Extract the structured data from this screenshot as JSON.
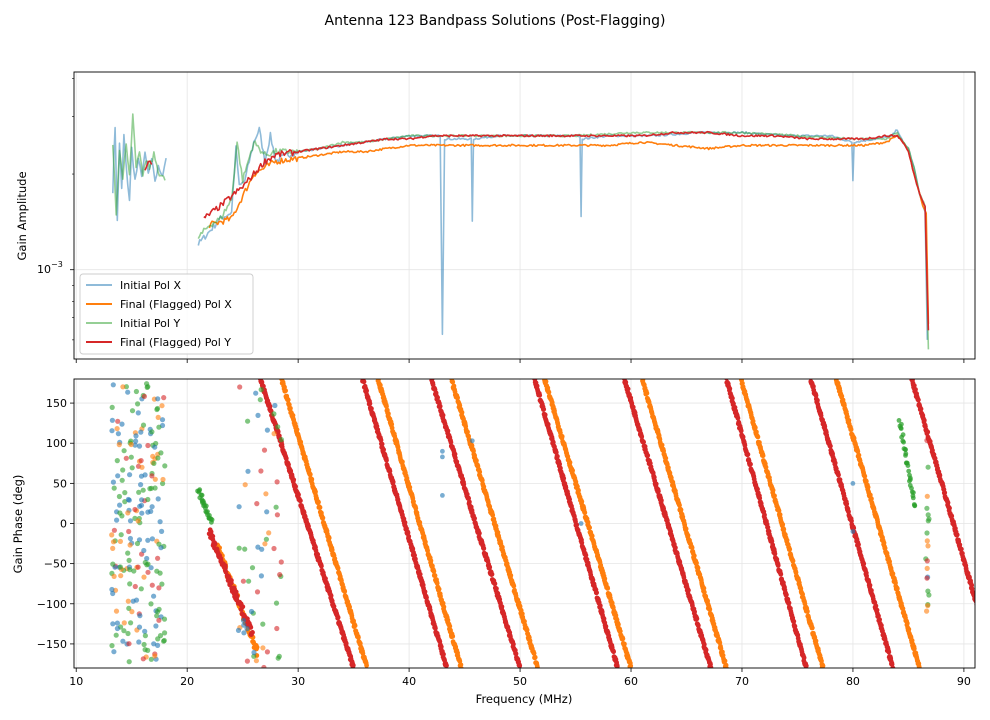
{
  "figure": {
    "title": "Antenna 123 Bandpass Solutions (Post-Flagging)"
  },
  "colors": {
    "pol_x_initial": "#1f77b4",
    "pol_x_final": "#ff7f0e",
    "pol_y_initial": "#2ca02c",
    "pol_y_final": "#d62728"
  },
  "chart_data": [
    {
      "type": "line",
      "panel": "amplitude",
      "ylabel": "Gain Amplitude",
      "yscale": "log",
      "ytick_base": "10",
      "ytick_exp": "−3",
      "xlim": [
        9.8,
        91
      ],
      "ylim_log10": [
        -3.28,
        -2.38
      ],
      "grid": true,
      "legend_position": "lower-left",
      "legend": [
        "Initial Pol X",
        "Final (Flagged) Pol X",
        "Initial Pol Y",
        "Final (Flagged) Pol Y"
      ],
      "series": [
        {
          "name": "Initial Pol X",
          "color": "#1f77b4",
          "alpha": 0.5,
          "segments": [
            [
              [
                13.3,
                -2.75
              ],
              [
                13.5,
                -2.55
              ],
              [
                13.7,
                -2.85
              ],
              [
                13.9,
                -2.6
              ],
              [
                14.1,
                -2.75
              ],
              [
                14.3,
                -2.58
              ],
              [
                14.5,
                -2.68
              ],
              [
                14.8,
                -2.78
              ],
              [
                15.0,
                -2.62
              ],
              [
                15.3,
                -2.72
              ],
              [
                15.6,
                -2.66
              ],
              [
                15.9,
                -2.7
              ],
              [
                16.2,
                -2.64
              ],
              [
                16.5,
                -2.7
              ],
              [
                16.8,
                -2.66
              ],
              [
                17.1,
                -2.72
              ],
              [
                17.4,
                -2.68
              ],
              [
                17.8,
                -2.7
              ],
              [
                18.1,
                -2.65
              ]
            ],
            [
              [
                21.0,
                -2.92
              ],
              [
                22.0,
                -2.88
              ],
              [
                23.0,
                -2.84
              ],
              [
                24.0,
                -2.82
              ],
              [
                24.4,
                -2.62
              ],
              [
                24.7,
                -2.74
              ],
              [
                25.2,
                -2.72
              ],
              [
                26.0,
                -2.6
              ],
              [
                26.5,
                -2.56
              ],
              [
                27.0,
                -2.66
              ],
              [
                27.5,
                -2.58
              ],
              [
                28.0,
                -2.66
              ],
              [
                29.0,
                -2.64
              ],
              [
                30.0,
                -2.63
              ],
              [
                32.0,
                -2.62
              ],
              [
                34.0,
                -2.61
              ],
              [
                36.0,
                -2.6
              ],
              [
                38.0,
                -2.59
              ],
              [
                40.0,
                -2.58
              ],
              [
                42.0,
                -2.58
              ],
              [
                42.8,
                -2.58
              ],
              [
                43.0,
                -3.2
              ],
              [
                43.2,
                -2.59
              ],
              [
                45.0,
                -2.59
              ],
              [
                45.6,
                -2.59
              ],
              [
                45.7,
                -2.85
              ],
              [
                45.8,
                -2.59
              ],
              [
                48.0,
                -2.58
              ],
              [
                50.0,
                -2.58
              ],
              [
                52.0,
                -2.58
              ],
              [
                55.0,
                -2.58
              ],
              [
                55.4,
                -2.58
              ],
              [
                55.5,
                -2.83
              ],
              [
                55.6,
                -2.59
              ],
              [
                58.0,
                -2.58
              ],
              [
                62.0,
                -2.58
              ],
              [
                66.0,
                -2.57
              ],
              [
                70.0,
                -2.57
              ],
              [
                74.0,
                -2.58
              ],
              [
                78.0,
                -2.58
              ],
              [
                79.9,
                -2.6
              ],
              [
                80.0,
                -2.72
              ],
              [
                80.1,
                -2.6
              ],
              [
                82.0,
                -2.59
              ],
              [
                83.5,
                -2.58
              ],
              [
                84.0,
                -2.56
              ],
              [
                84.5,
                -2.6
              ],
              [
                85.0,
                -2.62
              ],
              [
                85.5,
                -2.68
              ],
              [
                86.0,
                -2.76
              ],
              [
                86.3,
                -2.8
              ],
              [
                86.5,
                -2.82
              ],
              [
                86.7,
                -3.22
              ]
            ]
          ]
        },
        {
          "name": "Final (Flagged) Pol X",
          "color": "#ff7f0e",
          "alpha": 1,
          "segments": [
            [
              [
                22.0,
                -2.86
              ],
              [
                24.0,
                -2.84
              ],
              [
                26.0,
                -2.7
              ],
              [
                28.0,
                -2.66
              ],
              [
                30.0,
                -2.65
              ],
              [
                32.0,
                -2.64
              ],
              [
                34.0,
                -2.63
              ],
              [
                36.0,
                -2.63
              ],
              [
                38.0,
                -2.62
              ],
              [
                40.0,
                -2.61
              ],
              [
                42.0,
                -2.61
              ],
              [
                44.0,
                -2.61
              ],
              [
                46.0,
                -2.61
              ],
              [
                48.0,
                -2.61
              ],
              [
                50.0,
                -2.61
              ],
              [
                52.0,
                -2.61
              ],
              [
                55.0,
                -2.61
              ],
              [
                58.0,
                -2.61
              ],
              [
                61.0,
                -2.6
              ],
              [
                64.0,
                -2.61
              ],
              [
                67.0,
                -2.62
              ],
              [
                70.0,
                -2.61
              ],
              [
                73.0,
                -2.61
              ],
              [
                76.0,
                -2.61
              ],
              [
                79.0,
                -2.61
              ],
              [
                81.0,
                -2.61
              ],
              [
                83.0,
                -2.6
              ],
              [
                84.0,
                -2.58
              ],
              [
                84.5,
                -2.6
              ],
              [
                85.0,
                -2.63
              ],
              [
                85.5,
                -2.7
              ],
              [
                86.0,
                -2.76
              ],
              [
                86.3,
                -2.8
              ],
              [
                86.6,
                -2.82
              ],
              [
                86.8,
                -3.17
              ]
            ]
          ]
        },
        {
          "name": "Initial Pol Y",
          "color": "#2ca02c",
          "alpha": 0.5,
          "segments": [
            [
              [
                13.3,
                -2.6
              ],
              [
                13.6,
                -2.82
              ],
              [
                13.9,
                -2.62
              ],
              [
                14.2,
                -2.72
              ],
              [
                14.5,
                -2.6
              ],
              [
                14.8,
                -2.7
              ],
              [
                15.1,
                -2.52
              ],
              [
                15.4,
                -2.68
              ],
              [
                15.7,
                -2.64
              ],
              [
                16.0,
                -2.7
              ],
              [
                16.3,
                -2.66
              ],
              [
                16.6,
                -2.68
              ],
              [
                17.0,
                -2.64
              ],
              [
                17.5,
                -2.7
              ],
              [
                18.0,
                -2.72
              ]
            ],
            [
              [
                21.0,
                -2.9
              ],
              [
                22.0,
                -2.86
              ],
              [
                23.0,
                -2.84
              ],
              [
                24.0,
                -2.78
              ],
              [
                24.5,
                -2.6
              ],
              [
                25.0,
                -2.72
              ],
              [
                26.0,
                -2.6
              ],
              [
                27.0,
                -2.64
              ],
              [
                28.0,
                -2.63
              ],
              [
                30.0,
                -2.63
              ],
              [
                32.0,
                -2.62
              ],
              [
                34.0,
                -2.6
              ],
              [
                36.0,
                -2.6
              ],
              [
                38.0,
                -2.59
              ],
              [
                40.0,
                -2.58
              ],
              [
                42.0,
                -2.58
              ],
              [
                45.0,
                -2.58
              ],
              [
                50.0,
                -2.58
              ],
              [
                55.0,
                -2.58
              ],
              [
                60.0,
                -2.57
              ],
              [
                65.0,
                -2.57
              ],
              [
                70.0,
                -2.57
              ],
              [
                75.0,
                -2.58
              ],
              [
                80.0,
                -2.59
              ],
              [
                83.0,
                -2.59
              ],
              [
                84.0,
                -2.57
              ],
              [
                84.5,
                -2.6
              ],
              [
                85.0,
                -2.62
              ],
              [
                85.5,
                -2.68
              ],
              [
                86.0,
                -2.76
              ],
              [
                86.5,
                -2.8
              ],
              [
                86.8,
                -3.25
              ]
            ]
          ]
        },
        {
          "name": "Final (Flagged) Pol Y",
          "color": "#d62728",
          "alpha": 1,
          "segments": [
            [
              [
                16.2,
                -2.68
              ],
              [
                16.5,
                -2.66
              ],
              [
                16.8,
                -2.67
              ]
            ],
            [
              [
                21.5,
                -2.84
              ],
              [
                23.0,
                -2.8
              ],
              [
                25.0,
                -2.74
              ],
              [
                26.0,
                -2.7
              ],
              [
                27.0,
                -2.66
              ],
              [
                28.0,
                -2.64
              ],
              [
                30.0,
                -2.63
              ],
              [
                32.0,
                -2.62
              ],
              [
                34.0,
                -2.61
              ],
              [
                36.0,
                -2.6
              ],
              [
                38.0,
                -2.59
              ],
              [
                40.0,
                -2.59
              ],
              [
                42.0,
                -2.58
              ],
              [
                44.0,
                -2.58
              ],
              [
                46.0,
                -2.58
              ],
              [
                48.0,
                -2.58
              ],
              [
                50.0,
                -2.58
              ],
              [
                52.0,
                -2.58
              ],
              [
                55.0,
                -2.58
              ],
              [
                58.0,
                -2.58
              ],
              [
                61.0,
                -2.58
              ],
              [
                64.0,
                -2.57
              ],
              [
                67.0,
                -2.57
              ],
              [
                70.0,
                -2.58
              ],
              [
                73.0,
                -2.58
              ],
              [
                76.0,
                -2.59
              ],
              [
                79.0,
                -2.59
              ],
              [
                81.0,
                -2.59
              ],
              [
                83.0,
                -2.58
              ],
              [
                84.0,
                -2.58
              ],
              [
                84.5,
                -2.6
              ],
              [
                85.0,
                -2.63
              ],
              [
                85.5,
                -2.7
              ],
              [
                86.0,
                -2.76
              ],
              [
                86.5,
                -2.8
              ],
              [
                86.8,
                -3.19
              ]
            ]
          ]
        }
      ],
      "yticks": [
        {
          "exp": -3
        }
      ]
    },
    {
      "type": "scatter",
      "panel": "phase",
      "xlabel": "Frequency (MHz)",
      "ylabel": "Gain Phase (deg)",
      "xlim": [
        9.8,
        91
      ],
      "ylim": [
        -180,
        180
      ],
      "grid": true,
      "xticks": [
        10,
        20,
        30,
        40,
        50,
        60,
        70,
        80,
        90
      ],
      "yticks": [
        -150,
        -100,
        -50,
        0,
        50,
        100,
        150
      ],
      "wrap_lines": [
        {
          "series": "Final (Flagged) Pol Y",
          "x_top": 26.6,
          "x_bottom": 35.0
        },
        {
          "series": "Final (Flagged) Pol X",
          "x_top": 28.5,
          "x_bottom": 36.2
        },
        {
          "series": "Final (Flagged) Pol Y",
          "x_top": 35.8,
          "x_bottom": 43.4
        },
        {
          "series": "Final (Flagged) Pol X",
          "x_top": 37.2,
          "x_bottom": 44.7
        },
        {
          "series": "Final (Flagged) Pol Y",
          "x_top": 42.0,
          "x_bottom": 50.0
        },
        {
          "series": "Final (Flagged) Pol X",
          "x_top": 43.8,
          "x_bottom": 51.6
        },
        {
          "series": "Final (Flagged) Pol Y",
          "x_top": 51.3,
          "x_bottom": 58.8
        },
        {
          "series": "Final (Flagged) Pol X",
          "x_top": 52.2,
          "x_bottom": 60.0
        },
        {
          "series": "Final (Flagged) Pol Y",
          "x_top": 59.4,
          "x_bottom": 67.2
        },
        {
          "series": "Final (Flagged) Pol X",
          "x_top": 61.0,
          "x_bottom": 68.6
        },
        {
          "series": "Final (Flagged) Pol Y",
          "x_top": 68.6,
          "x_bottom": 75.8
        },
        {
          "series": "Final (Flagged) Pol X",
          "x_top": 69.9,
          "x_bottom": 77.3
        },
        {
          "series": "Final (Flagged) Pol Y",
          "x_top": 76.2,
          "x_bottom": 83.6
        },
        {
          "series": "Final (Flagged) Pol X",
          "x_top": 78.5,
          "x_bottom": 86.0
        },
        {
          "series": "Final (Flagged) Pol Y",
          "x_top": 85.3,
          "x_bottom": 92.8
        }
      ],
      "early_tracks": [
        {
          "series": "Final (Flagged) Pol X",
          "x_start": 22.8,
          "y_start": -30,
          "x_end": 26.3,
          "y_end": -160
        },
        {
          "series": "Final (Flagged) Pol Y",
          "x_start": 22.0,
          "y_start": -10,
          "x_end": 25.9,
          "y_end": -140
        },
        {
          "series": "Initial Pol Y",
          "x_start": 21.0,
          "y_start": 42,
          "x_end": 22.2,
          "y_end": 0
        },
        {
          "series": "Initial Pol Y",
          "x_start": 84.2,
          "y_start": 130,
          "x_end": 85.6,
          "y_end": 20
        }
      ],
      "noise_region": {
        "x_range": [
          13.2,
          18.0
        ],
        "y_range": [
          -175,
          175
        ],
        "count": 230
      }
    }
  ]
}
